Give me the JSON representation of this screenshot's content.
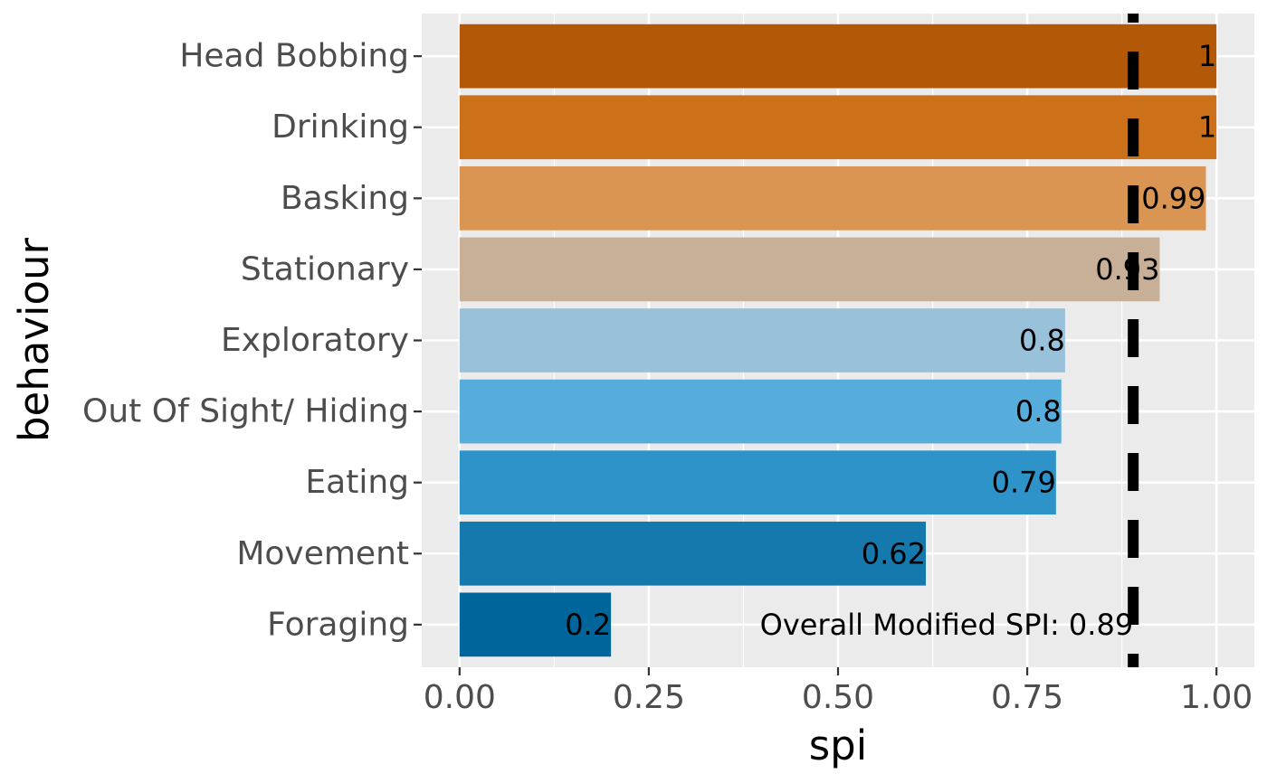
{
  "chart_data": {
    "type": "bar",
    "orientation": "horizontal",
    "title": "",
    "xlabel": "spi",
    "ylabel": "behaviour",
    "xlim": [
      -0.05,
      1.05
    ],
    "x_ticks": [
      0.0,
      0.25,
      0.5,
      0.75,
      1.0
    ],
    "x_tick_labels": [
      "0.00",
      "0.25",
      "0.50",
      "0.75",
      "1.00"
    ],
    "grid": true,
    "legend": "none",
    "categories": [
      "Head Bobbing",
      "Drinking",
      "Basking",
      "Stationary",
      "Exploratory",
      "Out Of Sight/ Hiding",
      "Eating",
      "Movement",
      "Foraging"
    ],
    "values": [
      1.0,
      1.0,
      0.986,
      0.925,
      0.8,
      0.795,
      0.788,
      0.616,
      0.2
    ],
    "value_labels": [
      "1",
      "1",
      "0.99",
      "0.93",
      "0.8",
      "0.8",
      "0.79",
      "0.62",
      "0.2"
    ],
    "colors": [
      "#b35806",
      "#cc7119",
      "#da9552",
      "#c8af97",
      "#99c1da",
      "#56acda",
      "#2e93c8",
      "#1679ae",
      "#00659b"
    ],
    "reference_line": {
      "x": 0.89,
      "style": "dashed",
      "color": "#000000"
    },
    "annotations": [
      {
        "text": "Overall Modified SPI: 0.89",
        "x": 0.89,
        "category": "Foraging",
        "anchor": "end"
      }
    ]
  }
}
